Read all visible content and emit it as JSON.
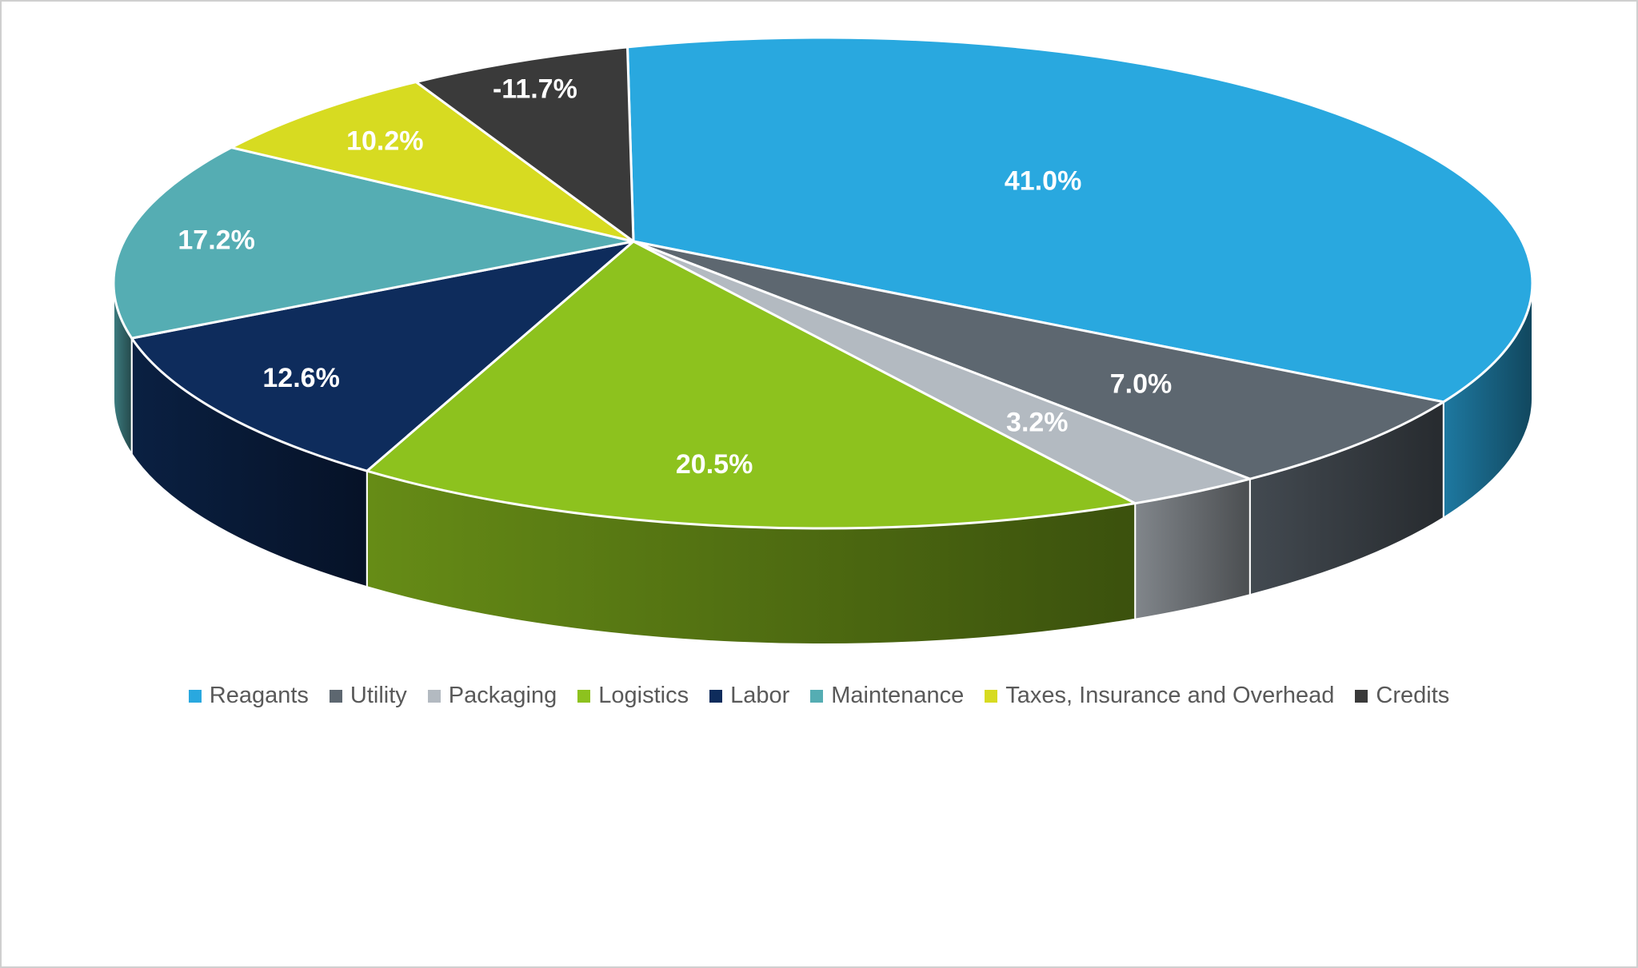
{
  "chart_data": {
    "type": "pie",
    "title": "",
    "categories": [
      "Reagants",
      "Utility",
      "Packaging",
      "Logistics",
      "Labor",
      "Maintenance",
      "Taxes, Insurance and Overhead",
      "Credits"
    ],
    "values": [
      41.0,
      7.0,
      3.2,
      20.5,
      12.6,
      17.2,
      10.2,
      -11.7
    ],
    "labels": [
      "41.0%",
      "7.0%",
      "3.2%",
      "20.5%",
      "12.6%",
      "17.2%",
      "10.2%",
      "-11.7%"
    ],
    "colors": [
      "#29A8DF",
      "#5D6770",
      "#B3BAC1",
      "#8DC21E",
      "#0E2C5C",
      "#55ADB3",
      "#D7DB21",
      "#3A3A3A"
    ],
    "style": "3d",
    "legend_position": "bottom",
    "start_angle_deg": -16,
    "render_angles_deg": [
      135,
      24,
      10.9,
      66.1,
      37,
      46.5,
      21.5,
      19
    ],
    "label_color": "#FFFFFF",
    "legend_text_color": "#595959",
    "background": "#FFFFFF",
    "border_color": "#CFCFCF"
  }
}
